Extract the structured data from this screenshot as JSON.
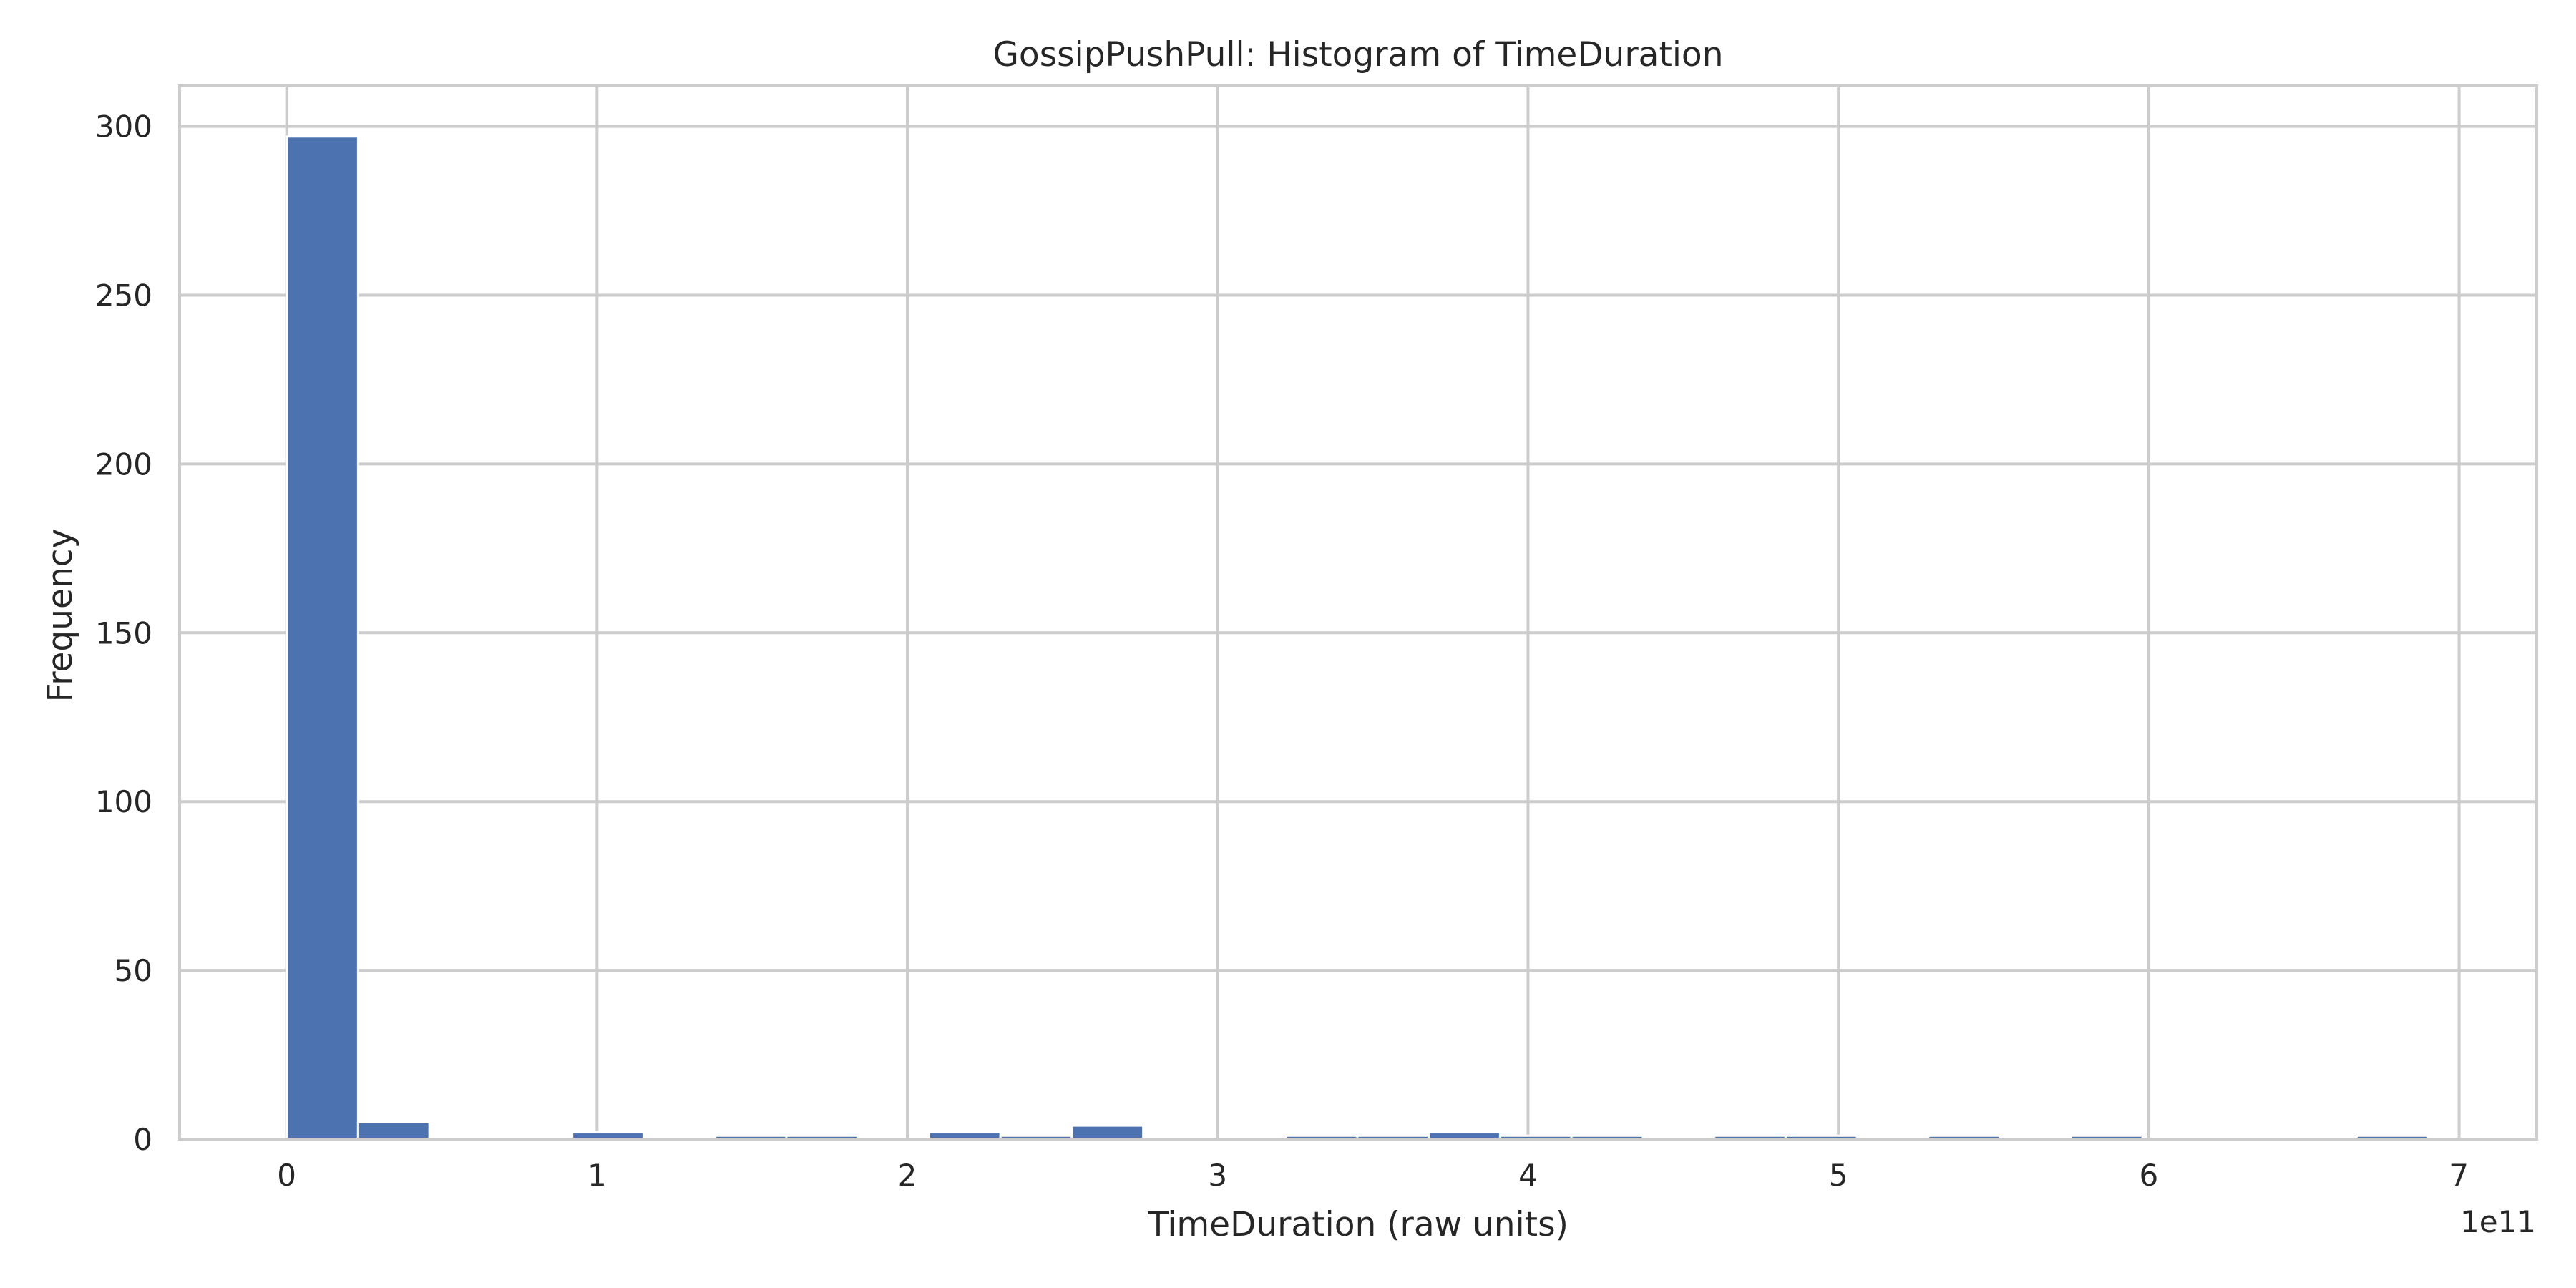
{
  "chart_data": {
    "type": "bar",
    "title": "GossipPushPull: Histogram of TimeDuration",
    "xlabel": "TimeDuration (raw units)",
    "ylabel": "Frequency",
    "x_offset_label": "1e11",
    "x_tick_labels": [
      "0",
      "1",
      "2",
      "3",
      "4",
      "5",
      "6",
      "7"
    ],
    "y_tick_labels": [
      "0",
      "50",
      "100",
      "150",
      "200",
      "250",
      "300"
    ],
    "x_ticks": [
      0,
      1,
      2,
      3,
      4,
      5,
      6,
      7
    ],
    "y_ticks": [
      0,
      50,
      100,
      150,
      200,
      250,
      300
    ],
    "xlim": [
      -0.345,
      7.25
    ],
    "ylim": [
      0,
      312
    ],
    "grid": true,
    "bar_color": "#4c72b0",
    "bins": [
      {
        "x0": 0.0,
        "x1": 0.23,
        "count": 297
      },
      {
        "x0": 0.23,
        "x1": 0.46,
        "count": 5
      },
      {
        "x0": 0.46,
        "x1": 0.69,
        "count": 0
      },
      {
        "x0": 0.69,
        "x1": 0.92,
        "count": 0
      },
      {
        "x0": 0.92,
        "x1": 1.15,
        "count": 2
      },
      {
        "x0": 1.15,
        "x1": 1.38,
        "count": 0
      },
      {
        "x0": 1.38,
        "x1": 1.61,
        "count": 1
      },
      {
        "x0": 1.61,
        "x1": 1.84,
        "count": 1
      },
      {
        "x0": 1.84,
        "x1": 2.07,
        "count": 0
      },
      {
        "x0": 2.07,
        "x1": 2.3,
        "count": 2
      },
      {
        "x0": 2.3,
        "x1": 2.53,
        "count": 1
      },
      {
        "x0": 2.53,
        "x1": 2.76,
        "count": 4
      },
      {
        "x0": 2.76,
        "x1": 2.99,
        "count": 0
      },
      {
        "x0": 2.99,
        "x1": 3.22,
        "count": 0
      },
      {
        "x0": 3.22,
        "x1": 3.45,
        "count": 1
      },
      {
        "x0": 3.45,
        "x1": 3.68,
        "count": 1
      },
      {
        "x0": 3.68,
        "x1": 3.91,
        "count": 2
      },
      {
        "x0": 3.91,
        "x1": 4.14,
        "count": 1
      },
      {
        "x0": 4.14,
        "x1": 4.37,
        "count": 1
      },
      {
        "x0": 4.37,
        "x1": 4.6,
        "count": 0
      },
      {
        "x0": 4.6,
        "x1": 4.83,
        "count": 1
      },
      {
        "x0": 4.83,
        "x1": 5.06,
        "count": 1
      },
      {
        "x0": 5.06,
        "x1": 5.29,
        "count": 0
      },
      {
        "x0": 5.29,
        "x1": 5.52,
        "count": 1
      },
      {
        "x0": 5.52,
        "x1": 5.75,
        "count": 0
      },
      {
        "x0": 5.75,
        "x1": 5.98,
        "count": 1
      },
      {
        "x0": 5.98,
        "x1": 6.21,
        "count": 0
      },
      {
        "x0": 6.21,
        "x1": 6.44,
        "count": 0
      },
      {
        "x0": 6.44,
        "x1": 6.67,
        "count": 0
      },
      {
        "x0": 6.67,
        "x1": 6.9,
        "count": 1
      }
    ]
  }
}
